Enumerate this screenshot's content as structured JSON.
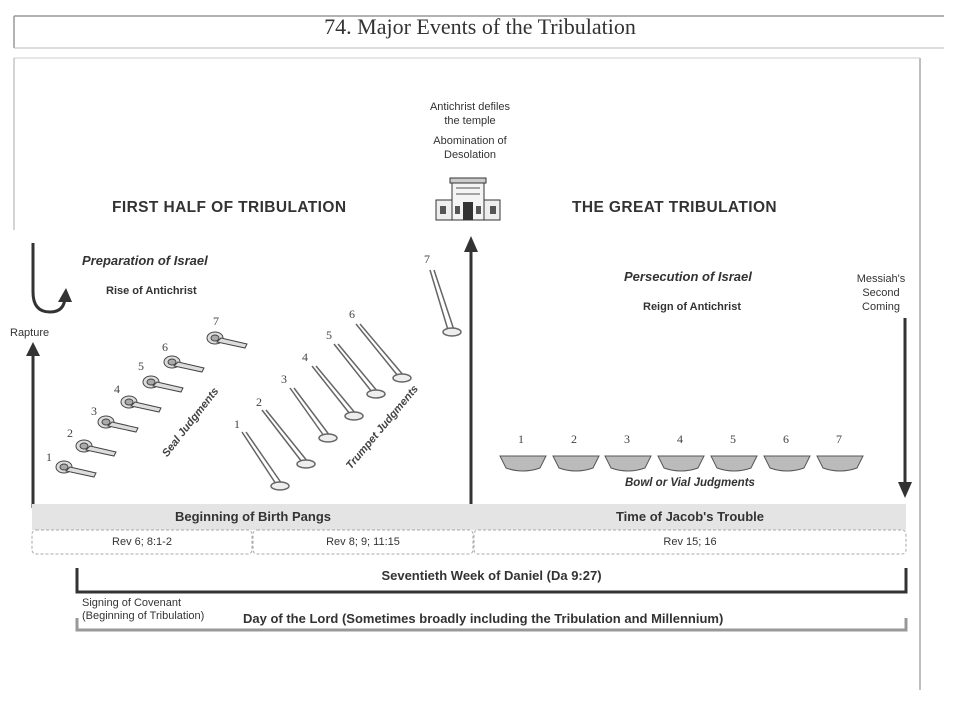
{
  "title": "74. Major Events of the Tribulation",
  "temple_caption": {
    "line1": "Antichrist defiles",
    "line2": "the temple",
    "line3": "Abomination of",
    "line4": "Desolation"
  },
  "first_half": {
    "heading": "FIRST HALF OF TRIBULATION",
    "israel": "Preparation of Israel",
    "antichrist": "Rise of Antichrist",
    "rapture": "Rapture",
    "seal_label": "Seal Judgments",
    "trumpet_label": "Trumpet Judgments",
    "seal_numbers": [
      "1",
      "2",
      "3",
      "4",
      "5",
      "6",
      "7"
    ],
    "trumpet_numbers": [
      "1",
      "2",
      "3",
      "4",
      "5",
      "6",
      "7"
    ],
    "band": "Beginning of Birth Pangs",
    "ref_seals": "Rev 6; 8:1-2",
    "ref_trumpets": "Rev 8; 9; 11:15"
  },
  "second_half": {
    "heading": "THE GREAT TRIBULATION",
    "israel": "Persecution of Israel",
    "antichrist": "Reign of Antichrist",
    "messiah_line1": "Messiah's",
    "messiah_line2": "Second",
    "messiah_line3": "Coming",
    "bowl_numbers": [
      "1",
      "2",
      "3",
      "4",
      "5",
      "6",
      "7"
    ],
    "bowl_label": "Bowl or Vial Judgments",
    "band": "Time of Jacob's Trouble",
    "ref": "Rev 15; 16"
  },
  "seventieth_week": "Seventieth Week of Daniel (Da 9:27)",
  "covenant_line1": "Signing of Covenant",
  "covenant_line2": "(Beginning of Tribulation)",
  "day_of_lord": "Day of the Lord (Sometimes broadly including the Tribulation and Millennium)"
}
